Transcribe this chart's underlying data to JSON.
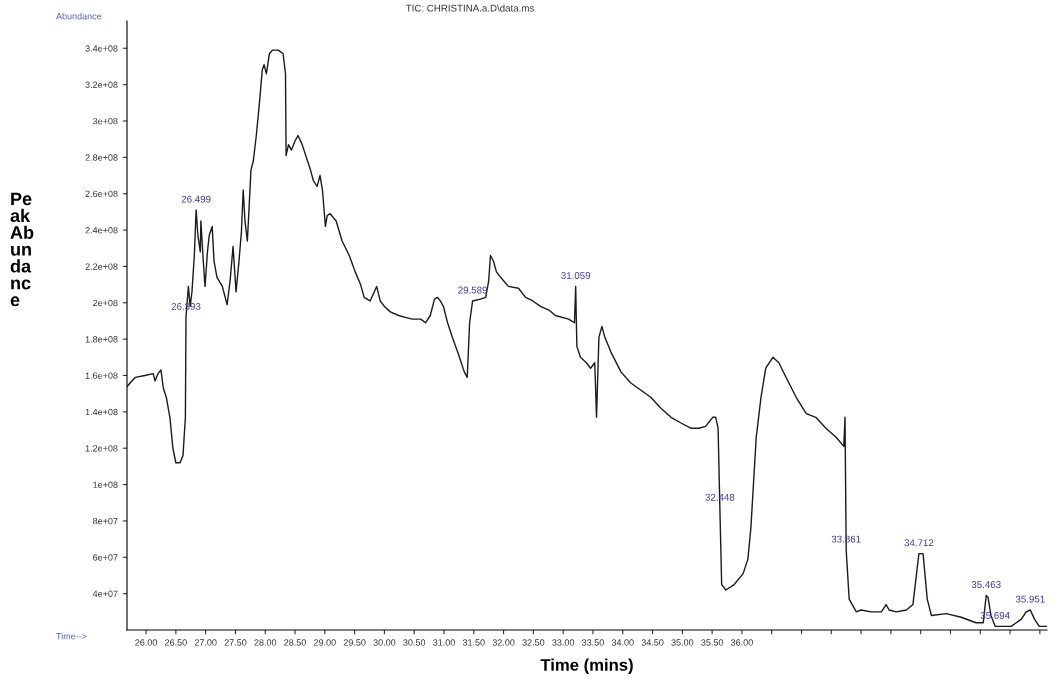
{
  "chart_data": {
    "type": "line",
    "title": "TIC: CHRISTINA.a.D\\data.ms",
    "xlabel": "Time (mins)",
    "ylabel": "Peak Abundance",
    "xlim": [
      25.68,
      41.12
    ],
    "ylim": [
      20000000.0,
      355000000.0
    ],
    "xticks": [
      {
        "value": 26,
        "label": "26.00"
      },
      {
        "value": 26.5,
        "label": "26.50"
      },
      {
        "value": 27,
        "label": "27.00"
      },
      {
        "value": 27.5,
        "label": "27.50"
      },
      {
        "value": 28,
        "label": "28.00"
      },
      {
        "value": 28.5,
        "label": "28.50"
      },
      {
        "value": 29,
        "label": "29.00"
      },
      {
        "value": 29.5,
        "label": "29.50"
      },
      {
        "value": 30,
        "label": "30.00"
      },
      {
        "value": 30.5,
        "label": "30.50"
      },
      {
        "value": 31,
        "label": "31.00"
      },
      {
        "value": 31.5,
        "label": "31.50"
      },
      {
        "value": 32,
        "label": "32.00"
      },
      {
        "value": 32.5,
        "label": "32.50"
      },
      {
        "value": 33,
        "label": "33.00"
      },
      {
        "value": 33.5,
        "label": "33.50"
      },
      {
        "value": 34,
        "label": "34.00"
      },
      {
        "value": 34.5,
        "label": "34.50"
      },
      {
        "value": 35,
        "label": "35.00"
      },
      {
        "value": 35.5,
        "label": "35.50"
      },
      {
        "value": 36,
        "label": "36.00"
      },
      {
        "value": 36.5,
        "label": null
      },
      {
        "value": 37,
        "label": null
      },
      {
        "value": 37.5,
        "label": null
      },
      {
        "value": 38,
        "label": null
      },
      {
        "value": 38.5,
        "label": null
      },
      {
        "value": 39,
        "label": null
      },
      {
        "value": 39.5,
        "label": null
      },
      {
        "value": 40,
        "label": null
      },
      {
        "value": 40.5,
        "label": null
      },
      {
        "value": 41,
        "label": null
      }
    ],
    "yticks": [
      {
        "value": 40000000.0,
        "label": "4e+07"
      },
      {
        "value": 60000000.0,
        "label": "6e+07"
      },
      {
        "value": 80000000.0,
        "label": "8e+07"
      },
      {
        "value": 100000000.0,
        "label": "1e+08"
      },
      {
        "value": 120000000.0,
        "label": "1.2e+08"
      },
      {
        "value": 140000000.0,
        "label": "1.4e+08"
      },
      {
        "value": 160000000.0,
        "label": "1.6e+08"
      },
      {
        "value": 180000000.0,
        "label": "1.8e+08"
      },
      {
        "value": 200000000.0,
        "label": "2e+08"
      },
      {
        "value": 220000000.0,
        "label": "2.2e+08"
      },
      {
        "value": 240000000.0,
        "label": "2.4e+08"
      },
      {
        "value": 260000000.0,
        "label": "2.6e+08"
      },
      {
        "value": 280000000.0,
        "label": "2.8e+08"
      },
      {
        "value": 300000000.0,
        "label": "3e+08"
      },
      {
        "value": 320000000.0,
        "label": "3.2e+08"
      },
      {
        "value": 340000000.0,
        "label": "3.4e+08"
      }
    ],
    "grid": false,
    "marker": "none",
    "line_style": "solid",
    "series": [
      {
        "color": "#1a1a1a",
        "x": [
          25.68,
          25.82,
          25.98,
          26.12,
          26.15,
          26.2,
          26.25,
          26.29,
          26.34,
          26.4,
          26.45,
          26.5,
          26.57,
          26.62,
          26.66,
          26.67,
          26.71,
          26.74,
          26.77,
          26.81,
          26.84,
          26.87,
          26.91,
          26.92,
          26.96,
          26.99,
          27.03,
          27.06,
          27.11,
          27.14,
          27.19,
          27.28,
          27.36,
          27.41,
          27.46,
          27.51,
          27.56,
          27.6,
          27.63,
          27.66,
          27.7,
          27.73,
          27.76,
          27.8,
          27.85,
          27.9,
          27.95,
          27.98,
          28.02,
          28.07,
          28.12,
          28.22,
          28.3,
          28.34,
          28.35,
          28.39,
          28.44,
          28.5,
          28.55,
          28.62,
          28.71,
          28.76,
          28.81,
          28.87,
          28.92,
          28.96,
          29.01,
          29.04,
          29.09,
          29.19,
          29.29,
          29.41,
          29.51,
          29.6,
          29.66,
          29.76,
          29.87,
          29.93,
          30.0,
          30.1,
          30.24,
          30.35,
          30.47,
          30.61,
          30.69,
          30.77,
          30.84,
          30.89,
          30.94,
          30.99,
          31.06,
          31.14,
          31.24,
          31.34,
          31.39,
          31.43,
          31.48,
          31.61,
          31.7,
          31.75,
          31.78,
          31.83,
          31.88,
          31.95,
          32.08,
          32.25,
          32.37,
          32.49,
          32.62,
          32.76,
          32.87,
          33.09,
          33.19,
          33.21,
          33.23,
          33.29,
          33.39,
          33.46,
          33.53,
          33.56,
          33.6,
          33.65,
          33.7,
          33.8,
          33.97,
          34.13,
          34.3,
          34.47,
          34.64,
          34.81,
          34.97,
          35.14,
          35.28,
          35.39,
          35.51,
          35.56,
          35.6,
          35.63,
          35.66,
          35.73,
          35.87,
          36.02,
          36.1,
          36.15,
          36.24,
          36.32,
          36.4,
          36.52,
          36.62,
          36.74,
          36.91,
          37.08,
          37.24,
          37.41,
          37.58,
          37.71,
          37.73,
          37.75,
          37.8,
          37.92,
          38.0,
          38.17,
          38.34,
          38.42,
          38.47,
          38.59,
          38.76,
          38.87,
          38.97,
          39.04,
          39.11,
          39.18,
          39.43,
          39.68,
          39.93,
          40.05,
          40.1,
          40.13,
          40.18,
          40.25,
          40.52,
          40.69,
          40.77,
          40.84,
          40.91,
          40.99,
          41.11
        ],
        "values": [
          154000000.0,
          159000000.0,
          160000000.0,
          161000000.0,
          157000000.0,
          161000000.0,
          163000000.0,
          153000000.0,
          148000000.0,
          137000000.0,
          120000000.0,
          112000000.0,
          112000000.0,
          116000000.0,
          137000000.0,
          192000000.0,
          209000000.0,
          198000000.0,
          206000000.0,
          226000000.0,
          251000000.0,
          237000000.0,
          228000000.0,
          245000000.0,
          223000000.0,
          209000000.0,
          228000000.0,
          237000000.0,
          242000000.0,
          223000000.0,
          214000000.0,
          209000000.0,
          199000000.0,
          212000000.0,
          231000000.0,
          206000000.0,
          223000000.0,
          239000000.0,
          262000000.0,
          245000000.0,
          234000000.0,
          253000000.0,
          273000000.0,
          278000000.0,
          292000000.0,
          309000000.0,
          328000000.0,
          331000000.0,
          326000000.0,
          337000000.0,
          339000000.0,
          339000000.0,
          337000000.0,
          326000000.0,
          281000000.0,
          287000000.0,
          284000000.0,
          289000000.0,
          292000000.0,
          287000000.0,
          278000000.0,
          273000000.0,
          267000000.0,
          264000000.0,
          270000000.0,
          262000000.0,
          242000000.0,
          248000000.0,
          249000000.0,
          245000000.0,
          234000000.0,
          226000000.0,
          217000000.0,
          210000000.0,
          203000000.0,
          201000000.0,
          209000000.0,
          201000000.0,
          198000000.0,
          195000000.0,
          193000000.0,
          192000000.0,
          191000000.0,
          191000000.0,
          189000000.0,
          193000000.0,
          202000000.0,
          203000000.0,
          201000000.0,
          198000000.0,
          189000000.0,
          181000000.0,
          172000000.0,
          162000000.0,
          159000000.0,
          189000000.0,
          201000000.0,
          202000000.0,
          203000000.0,
          212000000.0,
          226000000.0,
          223000000.0,
          217000000.0,
          214000000.0,
          209000000.0,
          208000000.0,
          203000000.0,
          201000000.0,
          198000000.0,
          196000000.0,
          193000000.0,
          191000000.0,
          189000000.0,
          209000000.0,
          176000000.0,
          170000000.0,
          167000000.0,
          164000000.0,
          167000000.0,
          137000000.0,
          181000000.0,
          187000000.0,
          181000000.0,
          173000000.0,
          162000000.0,
          156000000.0,
          152000000.0,
          148000000.0,
          142000000.0,
          137000000.0,
          134000000.0,
          131000000.0,
          131000000.0,
          132000000.0,
          137000000.0,
          137000000.0,
          131000000.0,
          87000000.0,
          45000000.0,
          42000000.0,
          45000000.0,
          51000000.0,
          59000000.0,
          76000000.0,
          126000000.0,
          148000000.0,
          164000000.0,
          170000000.0,
          167000000.0,
          159000000.0,
          148000000.0,
          139000000.0,
          137000000.0,
          131000000.0,
          126000000.0,
          121000000.0,
          137000000.0,
          64000000.0,
          37000000.0,
          30000000.0,
          31000000.0,
          30000000.0,
          30000000.0,
          34000000.0,
          31000000.0,
          30000000.0,
          31000000.0,
          34000000.0,
          62000000.0,
          62000000.0,
          37000000.0,
          28000000.0,
          29000000.0,
          27000000.0,
          24000000.0,
          24000000.0,
          39000000.0,
          38000000.0,
          28000000.0,
          22000000.0,
          22000000.0,
          26000000.0,
          30000000.0,
          31000000.0,
          26000000.0,
          22000000.0,
          22000000.0
        ]
      }
    ],
    "annotations": [
      "Abundance",
      "Time-->",
      {
        "text": "26.499",
        "x": 26.84,
        "y": 251000000.0
      },
      {
        "text": "26.393",
        "x": 26.67,
        "y": 192000000.0
      },
      {
        "text": "29.589",
        "x": 31.48,
        "y": 201000000.0
      },
      {
        "text": "31.059",
        "x": 33.21,
        "y": 209000000.0
      },
      {
        "text": "32.448",
        "x": 35.63,
        "y": 87000000.0
      },
      {
        "text": "33.861",
        "x": 37.75,
        "y": 64000000.0
      },
      {
        "text": "34.712",
        "x": 38.97,
        "y": 62000000.0
      },
      {
        "text": "35.463",
        "x": 40.1,
        "y": 39000000.0
      },
      {
        "text": "35.694",
        "x": 40.25,
        "y": 22000000.0
      },
      {
        "text": "35.951",
        "x": 40.84,
        "y": 31000000.0
      }
    ]
  }
}
